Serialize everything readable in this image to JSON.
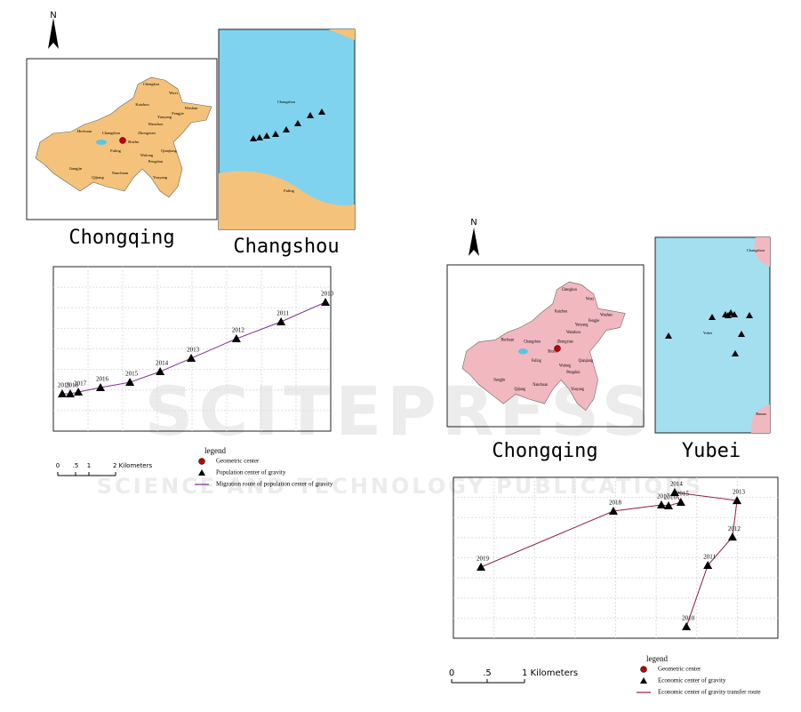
{
  "watermark": {
    "title": "SCITEPRESS",
    "subtitle": "SCIENCE AND TECHNOLOGY PUBLICATIONS"
  },
  "panels": [
    {
      "north": "N",
      "map_label": "Chongqing",
      "inset_label": "Changshou",
      "districts": [
        "Chengkou",
        "Wuxi",
        "Wushan",
        "Fengjie",
        "Yunyang",
        "Kaizhou",
        "Wanzhou",
        "Zhongxian",
        "Shizhu",
        "Fuling",
        "Wulong",
        "Pengshui",
        "Youyang",
        "Qianjiang",
        "Nanchuan",
        "Qijiang",
        "Jiangjin",
        "Hechuan",
        "Changshou"
      ],
      "inset_places": [
        "Changshou",
        "Fuling"
      ],
      "chart_data": {
        "type": "route",
        "xlim": [
          0,
          100
        ],
        "ylim": [
          0,
          100
        ],
        "color": "#7b2d8e",
        "categories": [
          "2010",
          "2011",
          "2012",
          "2013",
          "2014",
          "2015",
          "2016",
          "2017",
          "2018",
          "2019"
        ],
        "x": [
          98.1,
          82.1,
          66.0,
          49.7,
          38.5,
          27.6,
          17.0,
          9.0,
          6.1,
          3.2
        ],
        "values": [
          78.4,
          66.5,
          56.2,
          44.3,
          36.2,
          29.7,
          26.5,
          23.8,
          22.7,
          22.7
        ]
      },
      "legend": {
        "title": "legend",
        "items": [
          "Geometric center",
          "Population center of gravity",
          "Migration route of population center of gravity"
        ]
      },
      "scale": [
        "0",
        ".5",
        "1",
        "2 Kilometers"
      ]
    },
    {
      "north": "N",
      "map_label": "Chongqing",
      "inset_label": "Yubei",
      "districts": [
        "Chengkou",
        "Wuxi",
        "Wushan",
        "Fengjie",
        "Yunyang",
        "Kaizhou",
        "Wanzhou",
        "Zhongxian",
        "Shizhu",
        "Fuling",
        "Wulong",
        "Pengshui",
        "Youyang",
        "Qianjiang",
        "Nanchuan",
        "Qijiang",
        "Jiangjin",
        "Hechuan",
        "Changshou"
      ],
      "inset_places": [
        "Changshou",
        "Yubei",
        "Banan"
      ],
      "chart_data": {
        "type": "route",
        "xlim": [
          0,
          100
        ],
        "ylim": [
          0,
          100
        ],
        "color": "#8b1a4a",
        "categories": [
          "2010",
          "2011",
          "2012",
          "2013",
          "2014",
          "2015",
          "2016",
          "2017",
          "2018",
          "2019"
        ],
        "x": [
          71.8,
          78.4,
          86.0,
          87.4,
          68.2,
          70.1,
          66.3,
          64.1,
          49.3,
          8.5
        ],
        "values": [
          7.2,
          45.3,
          62.9,
          85.6,
          90.6,
          84.5,
          82.3,
          82.9,
          79.0,
          44.2
        ]
      },
      "legend": {
        "title": "legend",
        "items": [
          "Geometric center",
          "Economic center of gravity",
          "Economic center of gravity transfer route"
        ]
      },
      "scale": [
        "0",
        ".5",
        "1 Kilometers"
      ]
    }
  ]
}
